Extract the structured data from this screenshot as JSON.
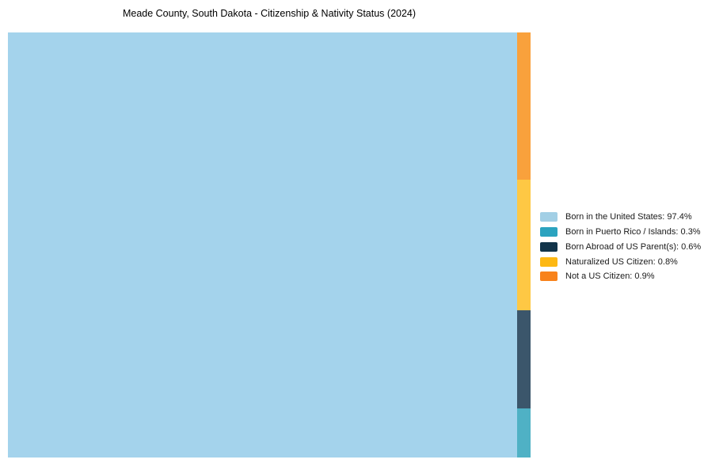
{
  "title": "Meade County, South Dakota - Citizenship & Nativity Status (2024)",
  "chart_data": {
    "type": "treemap",
    "title": "Meade County, South Dakota - Citizenship & Nativity Status (2024)",
    "categories": [
      "Born in the United States",
      "Born in Puerto Rico / Islands",
      "Born Abroad of US Parent(s)",
      "Naturalized US Citizen",
      "Not a US Citizen"
    ],
    "values": [
      97.4,
      0.3,
      0.6,
      0.8,
      0.9
    ],
    "value_unit": "%",
    "fill_colors": [
      "#a4d3ec",
      "#4fb1c5",
      "#3b566b",
      "#fec844",
      "#f9a13c"
    ],
    "legend_colors": [
      "#a2cfe5",
      "#2ba3bf",
      "#12344a",
      "#fdb813",
      "#f8821b"
    ],
    "legend_position": "right-center",
    "layout_hint": "largest value fills left block; remaining values stacked top-to-bottom in descending order in a narrow right strip",
    "background": "#ffffff"
  },
  "legend": {
    "items": [
      {
        "label": "Born in the United States: 97.4%",
        "color": "#a2cfe5"
      },
      {
        "label": "Born in Puerto Rico / Islands: 0.3%",
        "color": "#2ba3bf"
      },
      {
        "label": "Born Abroad of US Parent(s): 0.6%",
        "color": "#12344a"
      },
      {
        "label": "Naturalized US Citizen: 0.8%",
        "color": "#fdb813"
      },
      {
        "label": "Not a US Citizen: 0.9%",
        "color": "#f8821b"
      }
    ]
  }
}
